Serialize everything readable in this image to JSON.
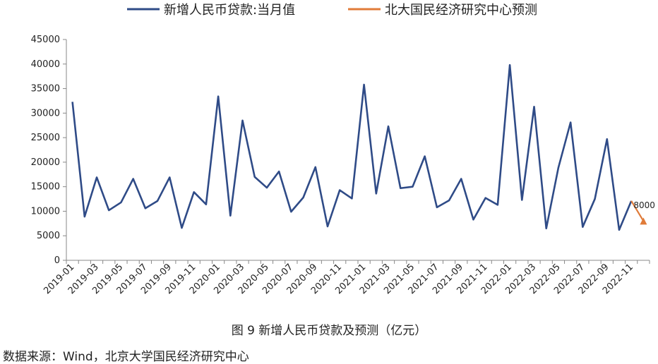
{
  "legend": [
    {
      "name": "新增人民币贷款:当月值",
      "color": "#2f4b87"
    },
    {
      "name": "北大国民经济研究中心预测",
      "color": "#e07b39"
    }
  ],
  "caption": "图 9  新增人民币贷款及预测（亿元）",
  "source": "数据来源：Wind，北京大学国民经济研究中心",
  "chart_data": {
    "type": "line",
    "title": "",
    "ylim": [
      0,
      45000
    ],
    "yticks": [
      "0",
      "5000",
      "10000",
      "15000",
      "20000",
      "25000",
      "30000",
      "35000",
      "40000",
      "45000"
    ],
    "xtick_labels": [
      "2019-01",
      "2019-03",
      "2019-05",
      "2019-07",
      "2019-09",
      "2019-11",
      "2020-01",
      "2020-03",
      "2020-05",
      "2020-07",
      "2020-09",
      "2020-11",
      "2021-01",
      "2021-03",
      "2021-05",
      "2021-07",
      "2021-09",
      "2021-11",
      "2022-01",
      "2022-03",
      "2022-05",
      "2022-07",
      "2022-09",
      "2022-11"
    ],
    "x": [
      "2019-01",
      "2019-02",
      "2019-03",
      "2019-04",
      "2019-05",
      "2019-06",
      "2019-07",
      "2019-08",
      "2019-09",
      "2019-10",
      "2019-11",
      "2019-12",
      "2020-01",
      "2020-02",
      "2020-03",
      "2020-04",
      "2020-05",
      "2020-06",
      "2020-07",
      "2020-08",
      "2020-09",
      "2020-10",
      "2020-11",
      "2020-12",
      "2021-01",
      "2021-02",
      "2021-03",
      "2021-04",
      "2021-05",
      "2021-06",
      "2021-07",
      "2021-08",
      "2021-09",
      "2021-10",
      "2021-11",
      "2021-12",
      "2022-01",
      "2022-02",
      "2022-03",
      "2022-04",
      "2022-05",
      "2022-06",
      "2022-07",
      "2022-08",
      "2022-09",
      "2022-10",
      "2022-11",
      "2022-12"
    ],
    "series": [
      {
        "name": "新增人民币贷款:当月值",
        "color": "#2f4b87",
        "values": [
          32300,
          8900,
          16900,
          10200,
          11800,
          16600,
          10600,
          12100,
          16900,
          6600,
          13900,
          11400,
          33400,
          9100,
          28500,
          17000,
          14800,
          18100,
          9900,
          12800,
          19000,
          6900,
          14300,
          12600,
          35800,
          13600,
          27300,
          14700,
          15000,
          21200,
          10800,
          12200,
          16600,
          8300,
          12700,
          11300,
          39800,
          12300,
          31300,
          6500,
          18900,
          28100,
          6800,
          12500,
          24700,
          6200,
          12100,
          null
        ]
      },
      {
        "name": "北大国民经济研究中心预测",
        "color": "#e07b39",
        "values": [
          null,
          null,
          null,
          null,
          null,
          null,
          null,
          null,
          null,
          null,
          null,
          null,
          null,
          null,
          null,
          null,
          null,
          null,
          null,
          null,
          null,
          null,
          null,
          null,
          null,
          null,
          null,
          null,
          null,
          null,
          null,
          null,
          null,
          null,
          null,
          null,
          null,
          null,
          null,
          null,
          null,
          null,
          null,
          null,
          null,
          null,
          12100,
          8000
        ]
      }
    ],
    "annotations": [
      {
        "x": "2022-12",
        "text": "8000"
      }
    ]
  }
}
